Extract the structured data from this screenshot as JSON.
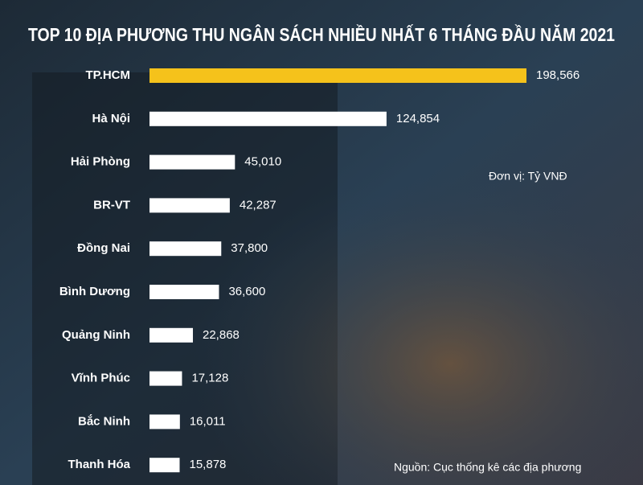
{
  "chart_data": {
    "type": "bar",
    "orientation": "horizontal",
    "title": "TOP 10 ĐỊA PHƯƠNG THU NGÂN SÁCH NHIỀU NHẤT 6 THÁNG ĐẦU NĂM 2021",
    "unit_note": "Đơn vị: Tỷ VNĐ",
    "source": "Nguồn: Cục thống kê các địa phương",
    "categories": [
      "TP.HCM",
      "Hà Nội",
      "Hải Phòng",
      "BR-VT",
      "Đồng Nai",
      "Bình Dương",
      "Quảng Ninh",
      "Vĩnh Phúc",
      "Bắc Ninh",
      "Thanh Hóa"
    ],
    "values": [
      198566,
      124854,
      45010,
      42287,
      37800,
      36600,
      22868,
      17128,
      16011,
      15878
    ],
    "value_labels": [
      "198,566",
      "124,854",
      "45,010",
      "42,287",
      "37,800",
      "36,600",
      "22,868",
      "17,128",
      "16,011",
      "15,878"
    ],
    "colors": [
      "#f5c21b",
      "#ffffff",
      "#ffffff",
      "#ffffff",
      "#ffffff",
      "#ffffff",
      "#ffffff",
      "#ffffff",
      "#ffffff",
      "#ffffff"
    ]
  }
}
